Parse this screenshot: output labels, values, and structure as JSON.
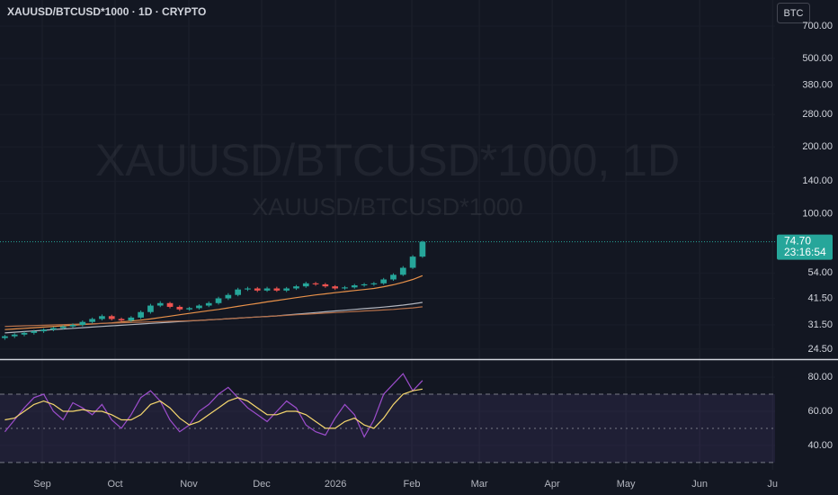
{
  "header": {
    "title": "XAUUSD/BTCUSD*1000 · 1D · CRYPTO",
    "currency": "BTC"
  },
  "watermark": {
    "line1": "XAUUSD/BTCUSD*1000, 1D",
    "line2": "XAUUSD/BTCUSD*1000"
  },
  "chart_data": [
    {
      "type": "candlestick",
      "log_scale": true,
      "categories": [
        null,
        null,
        null,
        null,
        null,
        null,
        null,
        null,
        null,
        null,
        null,
        null,
        null,
        null,
        null,
        null,
        null,
        null,
        null,
        null,
        null,
        null,
        null,
        null,
        null,
        null,
        null,
        null,
        null,
        null,
        null,
        null,
        null,
        null,
        null,
        null,
        null,
        null,
        null,
        null,
        null,
        null,
        null,
        null
      ],
      "open": [
        27.5,
        28,
        28.5,
        29,
        29.5,
        30,
        30.5,
        31,
        31.5,
        32.5,
        33.5,
        34.5,
        33.5,
        33,
        34,
        36,
        38.5,
        39.5,
        38,
        37,
        37.5,
        38.5,
        39.5,
        41.5,
        43,
        45.5,
        46,
        45,
        46,
        45,
        46,
        47,
        48.5,
        48,
        47,
        46,
        46.5,
        47.5,
        48,
        48.5,
        50.5,
        53,
        57,
        64
      ],
      "high": [
        28.4,
        28.9,
        29.4,
        29.9,
        30.4,
        30.9,
        31.4,
        32.0,
        33.0,
        34.0,
        35.1,
        35.0,
        34.0,
        34.5,
        36.6,
        39.2,
        40.3,
        40.0,
        38.6,
        38.0,
        39.0,
        40.2,
        42.2,
        43.8,
        46.3,
        46.8,
        46.7,
        46.8,
        46.8,
        46.7,
        47.7,
        49.3,
        49.2,
        48.7,
        47.6,
        47.2,
        48.2,
        48.7,
        49.2,
        51.3,
        53.8,
        58.0,
        65.0,
        75.5
      ],
      "low": [
        27.0,
        27.5,
        28.0,
        28.5,
        29.0,
        29.5,
        30.0,
        30.5,
        31.0,
        32.0,
        33.0,
        33.0,
        32.5,
        32.5,
        33.5,
        35.4,
        37.9,
        37.4,
        36.4,
        36.5,
        37.0,
        37.9,
        38.9,
        40.8,
        42.4,
        44.8,
        44.3,
        44.4,
        44.4,
        44.3,
        45.3,
        46.3,
        47.3,
        46.3,
        45.3,
        45.4,
        45.9,
        46.8,
        47.3,
        47.8,
        49.8,
        52.3,
        56.3,
        63.2
      ],
      "close": [
        28,
        28.5,
        29,
        29.5,
        30,
        30.5,
        31,
        31.5,
        32.5,
        33.5,
        34.5,
        33.5,
        33,
        34,
        36,
        38.5,
        39.5,
        38,
        37,
        37.5,
        38.5,
        39.5,
        41.5,
        43,
        45.5,
        46,
        45,
        46,
        45,
        46,
        47,
        48.5,
        48,
        47,
        46,
        46.5,
        47.5,
        48,
        48.5,
        50.5,
        53,
        57,
        64,
        74.7
      ],
      "up_color": "#26a69a",
      "down_color": "#ef5350",
      "overlays": [
        {
          "color": "#e8914a",
          "values": [
            30.0,
            30.2,
            30.4,
            30.6,
            30.8,
            31.0,
            31.2,
            31.4,
            31.6,
            31.8,
            32.0,
            32.2,
            32.5,
            32.8,
            33.1,
            33.5,
            34.0,
            34.5,
            35.0,
            35.5,
            36.0,
            36.5,
            37.0,
            37.6,
            38.2,
            38.8,
            39.4,
            40.0,
            40.6,
            41.2,
            41.8,
            42.4,
            43.0,
            43.5,
            44.0,
            44.5,
            45.0,
            45.5,
            46.0,
            46.8,
            47.8,
            49.0,
            50.5,
            52.5
          ]
        },
        {
          "color": "#b2b5be",
          "values": [
            29.0,
            29.2,
            29.4,
            29.6,
            29.8,
            30.0,
            30.2,
            30.4,
            30.6,
            30.8,
            31.0,
            31.2,
            31.4,
            31.6,
            31.8,
            32.0,
            32.2,
            32.4,
            32.6,
            32.8,
            33.0,
            33.2,
            33.4,
            33.6,
            33.8,
            34.0,
            34.2,
            34.4,
            34.6,
            34.9,
            35.2,
            35.5,
            35.8,
            36.1,
            36.4,
            36.7,
            37.0,
            37.3,
            37.6,
            37.9,
            38.3,
            38.7,
            39.2,
            39.8
          ]
        },
        {
          "color": "#b5704a",
          "values": [
            31.0,
            31.1,
            31.2,
            31.3,
            31.4,
            31.5,
            31.6,
            31.7,
            31.8,
            31.9,
            32.0,
            32.1,
            32.2,
            32.3,
            32.4,
            32.5,
            32.6,
            32.7,
            32.8,
            32.9,
            33.0,
            33.2,
            33.4,
            33.6,
            33.8,
            34.0,
            34.2,
            34.4,
            34.6,
            34.8,
            35.0,
            35.2,
            35.4,
            35.6,
            35.8,
            36.0,
            36.2,
            36.4,
            36.6,
            36.8,
            37.0,
            37.3,
            37.6,
            38.0
          ]
        }
      ],
      "xlim": [
        -0.5,
        79.3
      ],
      "xticks": [
        {
          "value": 3.85,
          "label": "Sep"
        },
        {
          "value": 11.35,
          "label": "Oct"
        },
        {
          "value": 18.94,
          "label": "Nov"
        },
        {
          "value": 26.44,
          "label": "Dec"
        },
        {
          "value": 34.04,
          "label": "2026"
        },
        {
          "value": 41.9,
          "label": "Feb"
        },
        {
          "value": 48.85,
          "label": "Mar"
        },
        {
          "value": 56.35,
          "label": "Apr"
        },
        {
          "value": 63.94,
          "label": "May"
        },
        {
          "value": 71.54,
          "label": "Jun"
        },
        {
          "value": 79.04,
          "label": "Ju"
        }
      ],
      "ylim": [
        22.3,
        918
      ],
      "yticks": [
        {
          "value": 24.5,
          "label": "24.50"
        },
        {
          "value": 31.5,
          "label": "31.50"
        },
        {
          "value": 41.5,
          "label": "41.50"
        },
        {
          "value": 54,
          "label": "54.00"
        },
        {
          "value": 100,
          "label": "100.00"
        },
        {
          "value": 140,
          "label": "140.00"
        },
        {
          "value": 200,
          "label": "200.00"
        },
        {
          "value": 280,
          "label": "280.00"
        },
        {
          "value": 380,
          "label": "380.00"
        },
        {
          "value": 500,
          "label": "500.00"
        },
        {
          "value": 700,
          "label": "700.00"
        }
      ],
      "last_price": {
        "value": 74.7,
        "label": "74.70"
      },
      "countdown": "23:16:54",
      "last_price_color": "#26a69a"
    },
    {
      "type": "line",
      "series": [
        {
          "color": "#9c4dcc",
          "values": [
            48,
            55,
            62,
            68,
            70,
            60,
            55,
            65,
            62,
            58,
            64,
            55,
            50,
            58,
            68,
            72,
            66,
            55,
            48,
            52,
            60,
            64,
            70,
            74,
            68,
            62,
            58,
            54,
            60,
            66,
            62,
            52,
            48,
            46,
            56,
            64,
            58,
            45,
            55,
            70,
            76,
            82,
            72,
            78
          ]
        },
        {
          "color": "#f5d76e",
          "values": [
            55,
            56,
            60,
            64,
            66,
            64,
            60,
            60,
            61,
            60,
            60,
            58,
            55,
            55,
            58,
            64,
            66,
            62,
            56,
            52,
            54,
            58,
            62,
            66,
            68,
            66,
            62,
            58,
            58,
            60,
            60,
            58,
            54,
            50,
            50,
            54,
            56,
            52,
            50,
            56,
            64,
            70,
            72,
            73
          ]
        }
      ],
      "levels": [
        70,
        50,
        30
      ],
      "band_color": "#7e57c2",
      "ylim": [
        26.8,
        90
      ],
      "yticks": [
        {
          "value": 80,
          "label": "80.00"
        },
        {
          "value": 60,
          "label": "60.00"
        },
        {
          "value": 40,
          "label": "40.00"
        }
      ]
    }
  ]
}
